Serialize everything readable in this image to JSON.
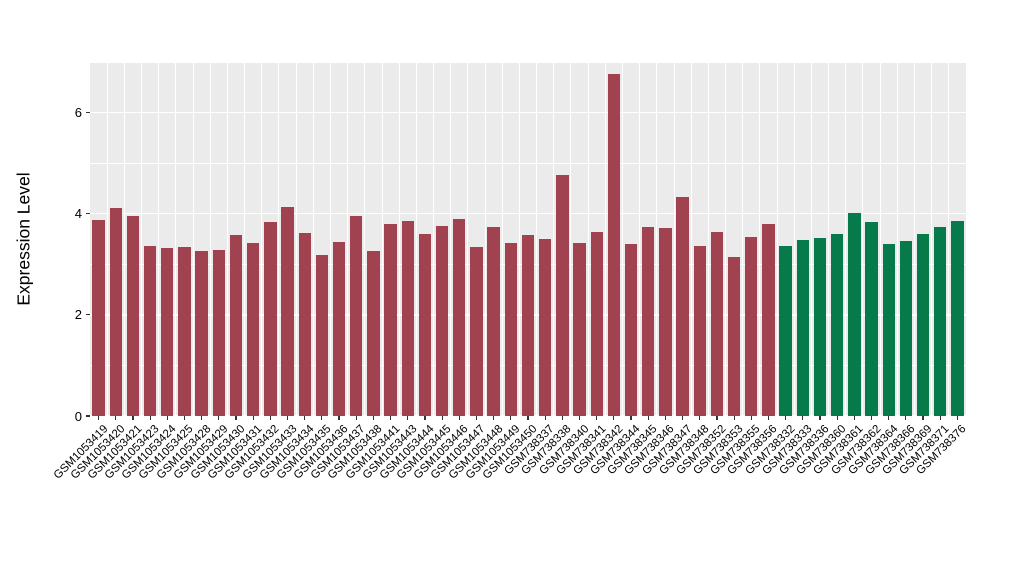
{
  "chart_data": {
    "type": "bar",
    "title": "",
    "xlabel": "",
    "ylabel": "Expression Level",
    "ylim": [
      0,
      7
    ],
    "yticks_major": [
      0,
      2,
      4,
      6
    ],
    "yticks_minor": [
      1,
      3,
      5,
      7
    ],
    "grid": "white major and minor horizontal lines plus vertical category separators on gray panel",
    "legend": null,
    "panel_bg": "#EBEBEB",
    "group_colors": {
      "red": "#A0424F",
      "green": "#077A4B"
    },
    "categories": [
      "GSM1053419",
      "GSM1053420",
      "GSM1053421",
      "GSM1053423",
      "GSM1053424",
      "GSM1053425",
      "GSM1053428",
      "GSM1053429",
      "GSM1053430",
      "GSM1053431",
      "GSM1053432",
      "GSM1053433",
      "GSM1053434",
      "GSM1053435",
      "GSM1053436",
      "GSM1053437",
      "GSM1053438",
      "GSM1053441",
      "GSM1053443",
      "GSM1053444",
      "GSM1053445",
      "GSM1053446",
      "GSM1053447",
      "GSM1053448",
      "GSM1053449",
      "GSM1053450",
      "GSM738337",
      "GSM738338",
      "GSM738340",
      "GSM738341",
      "GSM738342",
      "GSM738344",
      "GSM738345",
      "GSM738346",
      "GSM738347",
      "GSM738348",
      "GSM738352",
      "GSM738353",
      "GSM738355",
      "GSM738356",
      "GSM738332",
      "GSM738333",
      "GSM738336",
      "GSM738360",
      "GSM738361",
      "GSM738362",
      "GSM738364",
      "GSM738366",
      "GSM738369",
      "GSM738371",
      "GSM738376"
    ],
    "values": [
      3.87,
      4.12,
      3.96,
      3.37,
      3.33,
      3.35,
      3.27,
      3.29,
      3.58,
      3.43,
      3.84,
      4.14,
      3.61,
      3.19,
      3.45,
      3.96,
      3.26,
      3.8,
      3.85,
      3.6,
      3.75,
      3.89,
      3.35,
      3.73,
      3.43,
      3.57,
      3.51,
      4.76,
      3.43,
      3.64,
      6.76,
      3.41,
      3.74,
      3.71,
      4.34,
      3.37,
      3.64,
      3.14,
      3.53,
      3.8,
      3.37,
      3.49,
      3.52,
      3.59,
      4.02,
      3.84,
      3.41,
      3.46,
      3.6,
      3.73,
      3.85
    ],
    "groups": [
      "red",
      "red",
      "red",
      "red",
      "red",
      "red",
      "red",
      "red",
      "red",
      "red",
      "red",
      "red",
      "red",
      "red",
      "red",
      "red",
      "red",
      "red",
      "red",
      "red",
      "red",
      "red",
      "red",
      "red",
      "red",
      "red",
      "red",
      "red",
      "red",
      "red",
      "red",
      "red",
      "red",
      "red",
      "red",
      "red",
      "red",
      "red",
      "red",
      "red",
      "green",
      "green",
      "green",
      "green",
      "green",
      "green",
      "green",
      "green",
      "green",
      "green",
      "green"
    ]
  }
}
